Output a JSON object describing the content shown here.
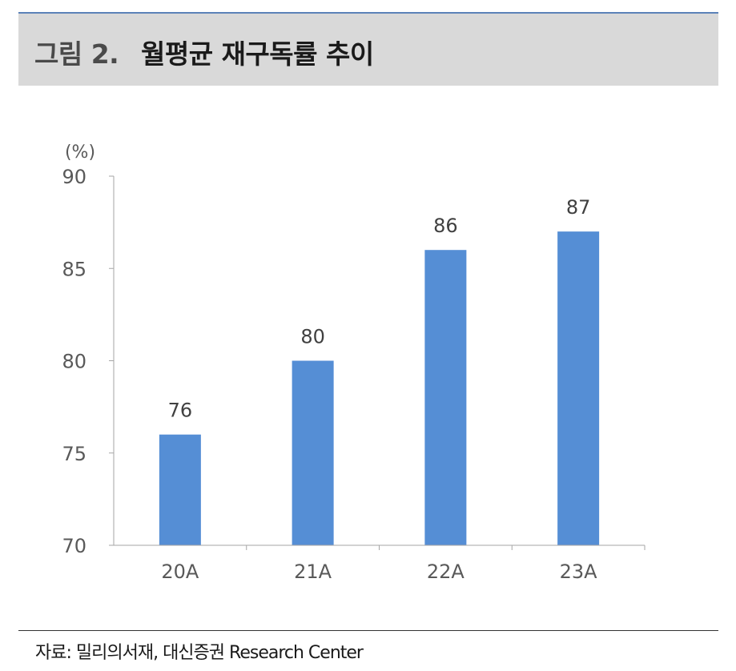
{
  "header": {
    "figure_label": "그림 2.",
    "title": "월평균 재구독률 추이"
  },
  "footer": {
    "source": "자료: 밀리의서재, 대신증권 Research Center"
  },
  "colors": {
    "bar": "#558ed5",
    "header_band": "#d9d9d9",
    "top_rule": "#5b82b8",
    "axis": "#a6a6a6",
    "text": "#595959"
  },
  "chart_data": {
    "type": "bar",
    "unit_label": "(%)",
    "categories": [
      "20A",
      "21A",
      "22A",
      "23A"
    ],
    "values": [
      76,
      80,
      86,
      87
    ],
    "data_labels": [
      "76",
      "80",
      "86",
      "87"
    ],
    "ylim": [
      70,
      90
    ],
    "yticks": [
      70,
      75,
      80,
      85,
      90
    ],
    "ytick_labels": [
      "70",
      "75",
      "80",
      "85",
      "90"
    ],
    "grid": false,
    "legend": "none"
  }
}
